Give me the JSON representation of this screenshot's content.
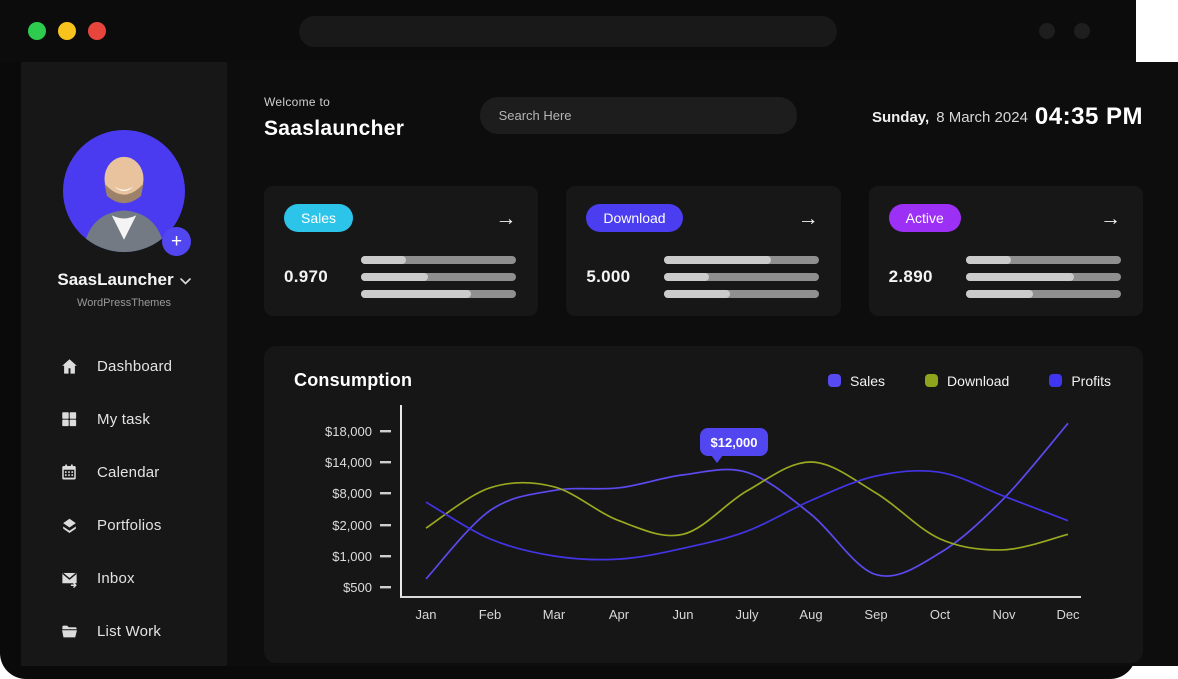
{
  "window": {
    "traffic_lights": [
      {
        "name": "green",
        "color": "#2ecc4e"
      },
      {
        "name": "yellow",
        "color": "#f8c31c"
      },
      {
        "name": "red",
        "color": "#e8463c"
      }
    ],
    "url_bar_value": "",
    "chrome_icons": [
      "circle-button",
      "circle-button"
    ]
  },
  "sidebar": {
    "profile": {
      "name": "SaasLauncher",
      "subtitle": "WordPressThemes",
      "add_button": "+",
      "avatar_bg": "#4b3bf0"
    },
    "items": [
      {
        "label": "Dashboard",
        "icon": "home-icon"
      },
      {
        "label": "My task",
        "icon": "grid-icon"
      },
      {
        "label": "Calendar",
        "icon": "calendar-icon"
      },
      {
        "label": "Portfolios",
        "icon": "layers-icon"
      },
      {
        "label": "Inbox",
        "icon": "inbox-icon"
      },
      {
        "label": "List Work",
        "icon": "folder-icon"
      }
    ]
  },
  "header": {
    "welcome": "Welcome to",
    "app_name": "Saaslauncher",
    "search_placeholder": "Search Here",
    "date_day": "Sunday,",
    "date_rest": "8 March 2024",
    "time": "04:35 PM"
  },
  "stat_cards": [
    {
      "label": "Sales",
      "badge_color": "#2cc5e9",
      "value": "0.970",
      "bars": [
        29,
        43,
        71
      ]
    },
    {
      "label": "Download",
      "badge_color": "#4b3df0",
      "value": "5.000",
      "bars": [
        69,
        29,
        43
      ]
    },
    {
      "label": "Active",
      "badge_color": "#9d30f5",
      "value": "2.890",
      "bars": [
        29,
        70,
        43
      ]
    }
  ],
  "chart_data": {
    "type": "line",
    "title": "Consumption",
    "x": [
      "Jan",
      "Feb",
      "Mar",
      "Apr",
      "Jun",
      "July",
      "Aug",
      "Sep",
      "Oct",
      "Nov",
      "Dec"
    ],
    "y_ticks": [
      "$18,000",
      "$14,000",
      "$8,000",
      "$2,000",
      "$1,000",
      "$500"
    ],
    "y_tick_values": [
      18000,
      14000,
      8000,
      2000,
      1000,
      500
    ],
    "grid": false,
    "legend_position": "top-right",
    "series": [
      {
        "name": "Sales",
        "color": "#5b4af0",
        "dot_color": "#564af0",
        "values": [
          630,
          4700,
          8500,
          9000,
          11500,
          12000,
          4000,
          700,
          1100,
          7000,
          19000
        ]
      },
      {
        "name": "Download",
        "color": "#9aa820",
        "dot_color": "#8fa31c",
        "values": [
          1900,
          9000,
          9200,
          2800,
          1700,
          8400,
          14000,
          8000,
          1550,
          1200,
          1700
        ]
      },
      {
        "name": "Profits",
        "color": "#4334e6",
        "dot_color": "#4136f0",
        "values": [
          6300,
          1550,
          1000,
          950,
          1250,
          1800,
          6600,
          11300,
          12000,
          7400,
          2800
        ]
      }
    ],
    "tooltip": {
      "text": "$12,000",
      "series": "Sales",
      "x_label": "July"
    }
  }
}
